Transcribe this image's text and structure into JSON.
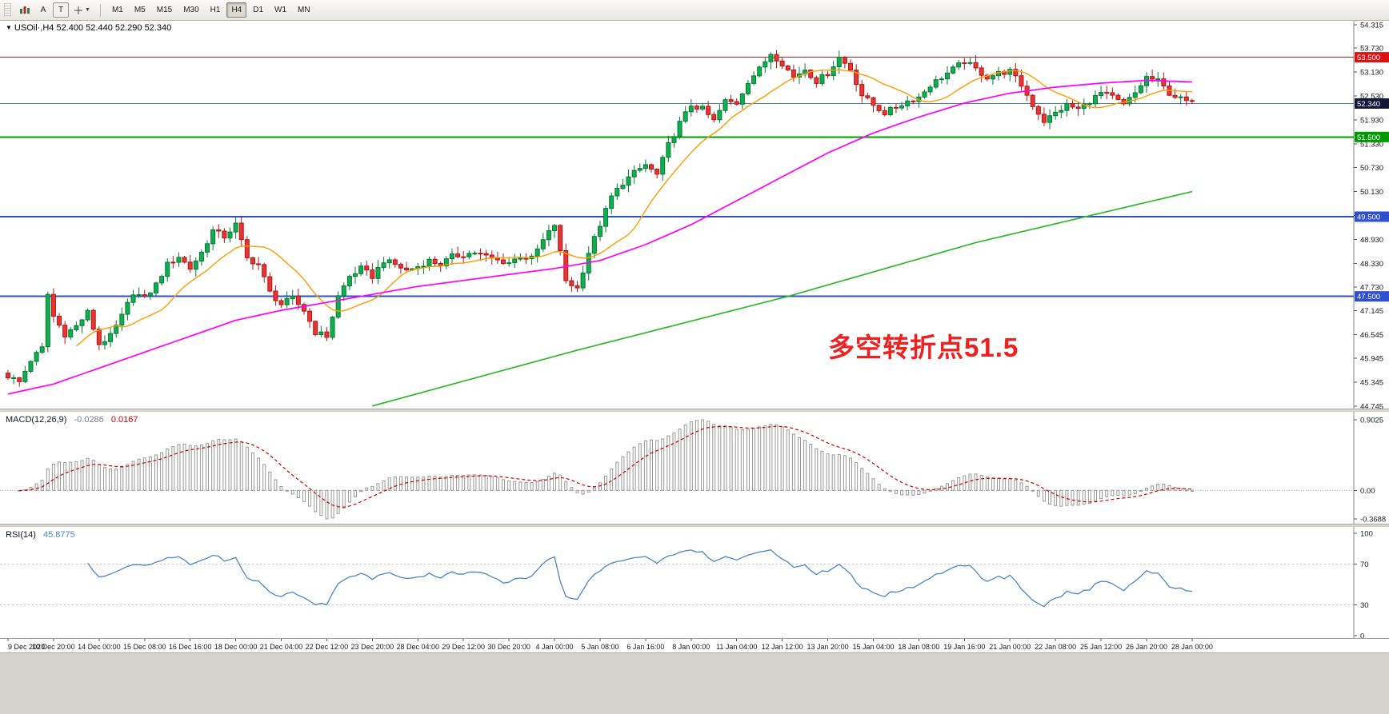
{
  "toolbar": {
    "tool_a_label": "A",
    "tool_t_label": "T",
    "timeframes": [
      "M1",
      "M5",
      "M15",
      "M30",
      "H1",
      "H4",
      "D1",
      "W1",
      "MN"
    ],
    "active_timeframe": "H4"
  },
  "chart_data": {
    "type": "candlestick",
    "title": "USOil H4",
    "symbol_label": "USOil·,H4 52.400 52.440 52.290 52.340",
    "annotation": {
      "text": "多空转折点51.5",
      "color": "#ee2020"
    },
    "price_range": [
      44.745,
      54.315
    ],
    "price_ticks": [
      "54.315",
      "53.730",
      "53.130",
      "52.530",
      "51.930",
      "51.330",
      "50.730",
      "50.130",
      "49.530",
      "48.930",
      "48.330",
      "47.730",
      "47.145",
      "46.545",
      "45.945",
      "45.345",
      "44.745"
    ],
    "horizontal_levels": [
      {
        "price": 53.5,
        "label": "53.500",
        "color": "#dd1111",
        "width": 1
      },
      {
        "price": 51.5,
        "label": "51.500",
        "color": "#009900",
        "width": 2
      },
      {
        "price": 49.5,
        "label": "49.500",
        "color": "#2e4fd0",
        "width": 2
      },
      {
        "price": 47.5,
        "label": "47.500",
        "color": "#2e4fd0",
        "width": 2
      }
    ],
    "current_price": {
      "value": 52.34,
      "label": "52.340",
      "line_color": "#4a7ebb",
      "tag_color": "#15153a"
    },
    "colors": {
      "up_fill": "#0fae4e",
      "up_stroke": "#067a33",
      "down_fill": "#e93434",
      "down_stroke": "#b31515"
    },
    "candle_count": 209,
    "candles_per_label": 8,
    "close_anchors": [
      [
        0,
        45.5
      ],
      [
        2,
        45.35
      ],
      [
        4,
        45.9
      ],
      [
        6,
        46.2
      ],
      [
        7,
        47.55
      ],
      [
        8,
        47.0
      ],
      [
        10,
        46.55
      ],
      [
        12,
        46.75
      ],
      [
        14,
        47.1
      ],
      [
        16,
        46.3
      ],
      [
        18,
        46.5
      ],
      [
        20,
        47.0
      ],
      [
        22,
        47.6
      ],
      [
        24,
        47.45
      ],
      [
        26,
        47.8
      ],
      [
        28,
        48.3
      ],
      [
        30,
        48.5
      ],
      [
        32,
        48.2
      ],
      [
        34,
        48.6
      ],
      [
        36,
        49.15
      ],
      [
        38,
        49.0
      ],
      [
        40,
        49.3
      ],
      [
        42,
        48.45
      ],
      [
        44,
        48.3
      ],
      [
        46,
        47.6
      ],
      [
        48,
        47.3
      ],
      [
        50,
        47.45
      ],
      [
        52,
        47.15
      ],
      [
        54,
        46.6
      ],
      [
        56,
        46.5
      ],
      [
        58,
        47.5
      ],
      [
        60,
        48.0
      ],
      [
        62,
        48.2
      ],
      [
        64,
        48.0
      ],
      [
        66,
        48.4
      ],
      [
        68,
        48.3
      ],
      [
        70,
        48.15
      ],
      [
        72,
        48.25
      ],
      [
        74,
        48.4
      ],
      [
        76,
        48.3
      ],
      [
        78,
        48.5
      ],
      [
        80,
        48.55
      ],
      [
        82,
        48.6
      ],
      [
        84,
        48.5
      ],
      [
        86,
        48.4
      ],
      [
        88,
        48.35
      ],
      [
        90,
        48.5
      ],
      [
        92,
        48.45
      ],
      [
        94,
        48.9
      ],
      [
        96,
        49.3
      ],
      [
        98,
        47.9
      ],
      [
        100,
        47.7
      ],
      [
        102,
        48.6
      ],
      [
        104,
        49.3
      ],
      [
        106,
        50.0
      ],
      [
        108,
        50.35
      ],
      [
        110,
        50.6
      ],
      [
        112,
        50.8
      ],
      [
        114,
        50.55
      ],
      [
        116,
        51.3
      ],
      [
        118,
        51.85
      ],
      [
        120,
        52.3
      ],
      [
        122,
        52.2
      ],
      [
        124,
        51.9
      ],
      [
        126,
        52.4
      ],
      [
        128,
        52.35
      ],
      [
        130,
        52.9
      ],
      [
        132,
        53.2
      ],
      [
        134,
        53.6
      ],
      [
        136,
        53.35
      ],
      [
        138,
        53.0
      ],
      [
        140,
        53.2
      ],
      [
        142,
        52.9
      ],
      [
        144,
        53.1
      ],
      [
        146,
        53.5
      ],
      [
        148,
        53.2
      ],
      [
        150,
        52.55
      ],
      [
        152,
        52.3
      ],
      [
        154,
        52.1
      ],
      [
        156,
        52.25
      ],
      [
        158,
        52.4
      ],
      [
        160,
        52.5
      ],
      [
        162,
        52.8
      ],
      [
        164,
        53.0
      ],
      [
        166,
        53.2
      ],
      [
        168,
        53.4
      ],
      [
        170,
        53.2
      ],
      [
        172,
        53.0
      ],
      [
        174,
        53.1
      ],
      [
        176,
        53.15
      ],
      [
        178,
        52.8
      ],
      [
        180,
        52.3
      ],
      [
        182,
        51.9
      ],
      [
        184,
        52.1
      ],
      [
        186,
        52.3
      ],
      [
        188,
        52.2
      ],
      [
        190,
        52.4
      ],
      [
        192,
        52.6
      ],
      [
        194,
        52.5
      ],
      [
        196,
        52.3
      ],
      [
        198,
        52.6
      ],
      [
        200,
        53.0
      ],
      [
        202,
        52.9
      ],
      [
        204,
        52.6
      ],
      [
        206,
        52.45
      ],
      [
        208,
        52.34
      ]
    ],
    "moving_averages": [
      {
        "name": "fast-ma",
        "type": "sma",
        "period": 13,
        "color": "#ff9c00"
      },
      {
        "name": "medium-ma",
        "color": "#ff00ff",
        "anchors": [
          [
            0,
            45.05
          ],
          [
            8,
            45.3
          ],
          [
            16,
            45.7
          ],
          [
            24,
            46.1
          ],
          [
            32,
            46.5
          ],
          [
            40,
            46.9
          ],
          [
            48,
            47.15
          ],
          [
            56,
            47.35
          ],
          [
            64,
            47.55
          ],
          [
            72,
            47.75
          ],
          [
            80,
            47.9
          ],
          [
            88,
            48.05
          ],
          [
            96,
            48.2
          ],
          [
            104,
            48.4
          ],
          [
            112,
            48.8
          ],
          [
            120,
            49.3
          ],
          [
            128,
            49.9
          ],
          [
            136,
            50.5
          ],
          [
            144,
            51.1
          ],
          [
            152,
            51.6
          ],
          [
            160,
            52.0
          ],
          [
            168,
            52.35
          ],
          [
            176,
            52.6
          ],
          [
            184,
            52.75
          ],
          [
            192,
            52.85
          ],
          [
            200,
            52.92
          ],
          [
            208,
            52.88
          ]
        ]
      },
      {
        "name": "slow-ma",
        "color": "#2db82d",
        "anchors": [
          [
            64,
            44.75
          ],
          [
            100,
            46.15
          ],
          [
            137,
            47.5
          ],
          [
            170,
            48.85
          ],
          [
            208,
            50.13
          ]
        ]
      }
    ],
    "indicators": [
      {
        "name": "MACD",
        "label": "MACD(12,26,9)",
        "main_value": "-0.0286",
        "signal_value": "0.0167",
        "fast": 12,
        "slow": 26,
        "smooth": 9,
        "scale_labels": [
          "0.9025",
          "0.00",
          "-0.3688"
        ],
        "histogram_color": "#989898",
        "signal_color": "#cc0000"
      },
      {
        "name": "RSI",
        "label": "RSI(14)",
        "value": "45.8775",
        "period": 14,
        "scale_labels": [
          "100",
          "70",
          "30",
          "0"
        ],
        "level_lines": [
          70,
          30
        ],
        "line_color": "#4a86c8"
      }
    ],
    "x_axis_labels": [
      "9 Dec 2020",
      "10 Dec 20:00",
      "14 Dec 00:00",
      "15 Dec 08:00",
      "16 Dec 16:00",
      "18 Dec 00:00",
      "21 Dec 04:00",
      "22 Dec 12:00",
      "23 Dec 20:00",
      "28 Dec 04:00",
      "29 Dec 12:00",
      "30 Dec 20:00",
      "4 Jan 00:00",
      "5 Jan 08:00",
      "6 Jan 16:00",
      "8 Jan 00:00",
      "11 Jan 04:00",
      "12 Jan 12:00",
      "13 Jan 20:00",
      "15 Jan 04:00",
      "18 Jan 08:00",
      "19 Jan 16:00",
      "21 Jan 00:00",
      "22 Jan 08:00",
      "25 Jan 12:00",
      "26 Jan 20:00",
      "28 Jan 00:00"
    ]
  }
}
